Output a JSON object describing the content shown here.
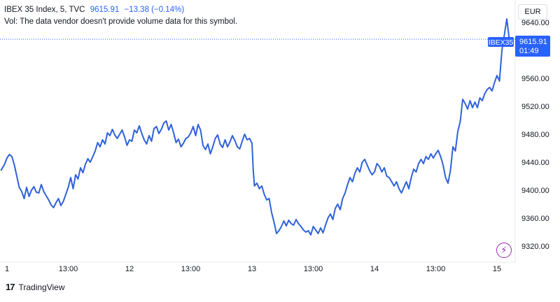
{
  "header": {
    "symbol": "IBEX 35 Index, 5, TVC",
    "price": "9615.91",
    "change": "−13.38 (−0.14%)",
    "volume_note": "Vol: The data vendor doesn't provide volume data for this symbol."
  },
  "currency": "EUR",
  "branding": {
    "logo_mark": "17",
    "name": "TradingView"
  },
  "icons": {
    "lightning": "lightning-icon"
  },
  "price_tag": {
    "symbol": "IBEX35",
    "value": "9615.91",
    "countdown": "01:49"
  },
  "colors": {
    "line": "#2f62d9",
    "accent": "#2962ff",
    "text": "#131722",
    "axis_text": "#131722",
    "lightning": "#9c27b0"
  },
  "chart_data": {
    "type": "line",
    "title": "",
    "xlabel": "",
    "ylabel": "",
    "ylim": [
      9300,
      9660
    ],
    "y_ticks": [
      9320,
      9360,
      9400,
      9440,
      9480,
      9520,
      9560,
      9600,
      9640
    ],
    "y_tick_labels": [
      "9320.00",
      "9360.00",
      "9400.00",
      "9440.00",
      "9480.00",
      "9520.00",
      "9560.00",
      "9600.00",
      "9640.00"
    ],
    "x_ticks": [
      {
        "label": "1",
        "t": 0
      },
      {
        "label": "13:00",
        "t": 0.5
      },
      {
        "label": "12",
        "t": 1
      },
      {
        "label": "13:00",
        "t": 1.5
      },
      {
        "label": "13",
        "t": 2
      },
      {
        "label": "13:00",
        "t": 2.5
      },
      {
        "label": "14",
        "t": 3
      },
      {
        "label": "13:00",
        "t": 3.5
      },
      {
        "label": "15",
        "t": 4
      }
    ],
    "last_value": 9615.91,
    "series": [
      {
        "values": [
          [
            -0.05,
            9428
          ],
          [
            -0.02,
            9437
          ],
          [
            0.0,
            9446
          ],
          [
            0.02,
            9451
          ],
          [
            0.04,
            9448
          ],
          [
            0.06,
            9436
          ],
          [
            0.08,
            9420
          ],
          [
            0.1,
            9404
          ],
          [
            0.12,
            9398
          ],
          [
            0.14,
            9388
          ],
          [
            0.16,
            9404
          ],
          [
            0.18,
            9391
          ],
          [
            0.2,
            9400
          ],
          [
            0.22,
            9405
          ],
          [
            0.24,
            9397
          ],
          [
            0.26,
            9396
          ],
          [
            0.28,
            9408
          ],
          [
            0.3,
            9398
          ],
          [
            0.32,
            9392
          ],
          [
            0.34,
            9386
          ],
          [
            0.36,
            9379
          ],
          [
            0.38,
            9375
          ],
          [
            0.4,
            9382
          ],
          [
            0.42,
            9388
          ],
          [
            0.44,
            9378
          ],
          [
            0.46,
            9384
          ],
          [
            0.48,
            9394
          ],
          [
            0.5,
            9404
          ],
          [
            0.52,
            9418
          ],
          [
            0.54,
            9402
          ],
          [
            0.56,
            9422
          ],
          [
            0.58,
            9416
          ],
          [
            0.6,
            9432
          ],
          [
            0.62,
            9425
          ],
          [
            0.64,
            9437
          ],
          [
            0.66,
            9445
          ],
          [
            0.68,
            9440
          ],
          [
            0.7,
            9448
          ],
          [
            0.72,
            9456
          ],
          [
            0.74,
            9468
          ],
          [
            0.76,
            9462
          ],
          [
            0.78,
            9472
          ],
          [
            0.8,
            9466
          ],
          [
            0.82,
            9482
          ],
          [
            0.84,
            9478
          ],
          [
            0.86,
            9487
          ],
          [
            0.88,
            9479
          ],
          [
            0.9,
            9474
          ],
          [
            0.92,
            9480
          ],
          [
            0.94,
            9486
          ],
          [
            0.96,
            9476
          ],
          [
            0.98,
            9464
          ],
          [
            1.0,
            9472
          ],
          [
            1.02,
            9470
          ],
          [
            1.04,
            9486
          ],
          [
            1.06,
            9482
          ],
          [
            1.08,
            9492
          ],
          [
            1.1,
            9481
          ],
          [
            1.12,
            9472
          ],
          [
            1.14,
            9466
          ],
          [
            1.16,
            9478
          ],
          [
            1.18,
            9470
          ],
          [
            1.2,
            9488
          ],
          [
            1.22,
            9491
          ],
          [
            1.24,
            9481
          ],
          [
            1.26,
            9487
          ],
          [
            1.28,
            9496
          ],
          [
            1.3,
            9499
          ],
          [
            1.32,
            9486
          ],
          [
            1.34,
            9494
          ],
          [
            1.36,
            9482
          ],
          [
            1.38,
            9468
          ],
          [
            1.4,
            9473
          ],
          [
            1.42,
            9462
          ],
          [
            1.44,
            9467
          ],
          [
            1.46,
            9474
          ],
          [
            1.48,
            9476
          ],
          [
            1.5,
            9482
          ],
          [
            1.52,
            9491
          ],
          [
            1.54,
            9478
          ],
          [
            1.56,
            9494
          ],
          [
            1.58,
            9486
          ],
          [
            1.6,
            9464
          ],
          [
            1.62,
            9458
          ],
          [
            1.64,
            9466
          ],
          [
            1.66,
            9452
          ],
          [
            1.68,
            9462
          ],
          [
            1.7,
            9474
          ],
          [
            1.72,
            9479
          ],
          [
            1.74,
            9466
          ],
          [
            1.76,
            9461
          ],
          [
            1.78,
            9472
          ],
          [
            1.8,
            9462
          ],
          [
            1.82,
            9469
          ],
          [
            1.84,
            9478
          ],
          [
            1.86,
            9471
          ],
          [
            1.88,
            9462
          ],
          [
            1.9,
            9459
          ],
          [
            1.92,
            9470
          ],
          [
            1.94,
            9480
          ],
          [
            1.96,
            9472
          ],
          [
            1.98,
            9474
          ],
          [
            2.0,
            9467
          ],
          [
            2.01,
            9430
          ],
          [
            2.02,
            9406
          ],
          [
            2.04,
            9410
          ],
          [
            2.06,
            9402
          ],
          [
            2.08,
            9406
          ],
          [
            2.1,
            9394
          ],
          [
            2.12,
            9386
          ],
          [
            2.14,
            9388
          ],
          [
            2.16,
            9368
          ],
          [
            2.18,
            9354
          ],
          [
            2.2,
            9338
          ],
          [
            2.22,
            9342
          ],
          [
            2.24,
            9348
          ],
          [
            2.26,
            9356
          ],
          [
            2.28,
            9349
          ],
          [
            2.3,
            9357
          ],
          [
            2.32,
            9352
          ],
          [
            2.34,
            9350
          ],
          [
            2.36,
            9358
          ],
          [
            2.38,
            9352
          ],
          [
            2.4,
            9348
          ],
          [
            2.42,
            9343
          ],
          [
            2.44,
            9340
          ],
          [
            2.46,
            9342
          ],
          [
            2.48,
            9336
          ],
          [
            2.5,
            9348
          ],
          [
            2.52,
            9343
          ],
          [
            2.54,
            9338
          ],
          [
            2.56,
            9346
          ],
          [
            2.58,
            9339
          ],
          [
            2.6,
            9350
          ],
          [
            2.62,
            9360
          ],
          [
            2.64,
            9366
          ],
          [
            2.66,
            9358
          ],
          [
            2.68,
            9374
          ],
          [
            2.7,
            9380
          ],
          [
            2.72,
            9372
          ],
          [
            2.74,
            9388
          ],
          [
            2.76,
            9396
          ],
          [
            2.78,
            9408
          ],
          [
            2.8,
            9418
          ],
          [
            2.82,
            9412
          ],
          [
            2.84,
            9424
          ],
          [
            2.86,
            9432
          ],
          [
            2.88,
            9426
          ],
          [
            2.9,
            9440
          ],
          [
            2.92,
            9444
          ],
          [
            2.94,
            9436
          ],
          [
            2.96,
            9428
          ],
          [
            2.98,
            9422
          ],
          [
            3.0,
            9426
          ],
          [
            3.02,
            9438
          ],
          [
            3.04,
            9434
          ],
          [
            3.06,
            9426
          ],
          [
            3.08,
            9432
          ],
          [
            3.1,
            9420
          ],
          [
            3.12,
            9418
          ],
          [
            3.14,
            9412
          ],
          [
            3.16,
            9406
          ],
          [
            3.18,
            9412
          ],
          [
            3.2,
            9402
          ],
          [
            3.22,
            9396
          ],
          [
            3.24,
            9404
          ],
          [
            3.26,
            9412
          ],
          [
            3.28,
            9402
          ],
          [
            3.3,
            9418
          ],
          [
            3.32,
            9430
          ],
          [
            3.34,
            9426
          ],
          [
            3.36,
            9438
          ],
          [
            3.38,
            9444
          ],
          [
            3.4,
            9438
          ],
          [
            3.42,
            9448
          ],
          [
            3.44,
            9444
          ],
          [
            3.46,
            9452
          ],
          [
            3.48,
            9446
          ],
          [
            3.5,
            9452
          ],
          [
            3.52,
            9457
          ],
          [
            3.54,
            9448
          ],
          [
            3.56,
            9436
          ],
          [
            3.58,
            9418
          ],
          [
            3.6,
            9410
          ],
          [
            3.62,
            9428
          ],
          [
            3.64,
            9462
          ],
          [
            3.66,
            9456
          ],
          [
            3.68,
            9484
          ],
          [
            3.7,
            9498
          ],
          [
            3.72,
            9530
          ],
          [
            3.74,
            9524
          ],
          [
            3.76,
            9516
          ],
          [
            3.78,
            9528
          ],
          [
            3.8,
            9518
          ],
          [
            3.82,
            9526
          ],
          [
            3.84,
            9518
          ],
          [
            3.86,
            9532
          ],
          [
            3.88,
            9528
          ],
          [
            3.9,
            9538
          ],
          [
            3.92,
            9544
          ],
          [
            3.94,
            9547
          ],
          [
            3.96,
            9542
          ],
          [
            3.98,
            9554
          ],
          [
            4.0,
            9564
          ],
          [
            4.02,
            9556
          ],
          [
            4.04,
            9600
          ],
          [
            4.06,
            9622
          ],
          [
            4.08,
            9645
          ],
          [
            4.1,
            9615.91
          ]
        ]
      }
    ]
  }
}
